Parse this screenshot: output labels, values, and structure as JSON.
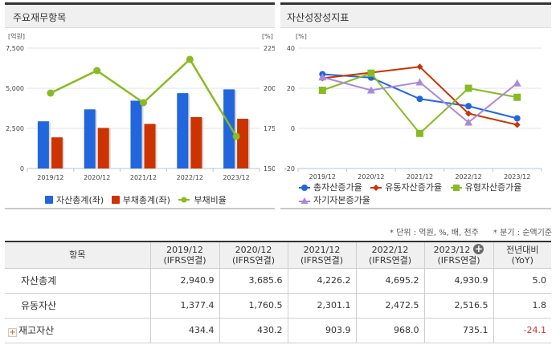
{
  "left_panel": {
    "title": "주요재무항목",
    "y_left_unit": "[억원]",
    "y_right_unit": "[%]",
    "y_left_ticks": [
      "7,500",
      "5,000",
      "2,500",
      "0"
    ],
    "y_right_ticks": [
      "225",
      "200",
      "175",
      "150"
    ],
    "legend": [
      {
        "label": "자산총계(좌)",
        "color": "#2266dd"
      },
      {
        "label": "부채총계(좌)",
        "color": "#cc3300"
      },
      {
        "label": "부채비율",
        "color": "#88bb22"
      }
    ]
  },
  "right_panel": {
    "title": "자산성장성지표",
    "y_unit": "[%]",
    "y_ticks": [
      "40",
      "20",
      "0",
      "-20"
    ],
    "legend": [
      {
        "label": "총자산증가율",
        "color": "#2266dd",
        "marker": "circle"
      },
      {
        "label": "유동자산증가율",
        "color": "#cc3300",
        "marker": "diamond"
      },
      {
        "label": "유형자산증가율",
        "color": "#88bb22",
        "marker": "square"
      },
      {
        "label": "자기자본증가율",
        "color": "#aa88dd",
        "marker": "triangle"
      }
    ]
  },
  "chart_data": [
    {
      "type": "bar",
      "title": "주요재무항목",
      "categories": [
        "2019/12",
        "2020/12",
        "2021/12",
        "2022/12",
        "2023/12"
      ],
      "ylabel": "억원",
      "ylim": [
        0,
        7500
      ],
      "y2label": "%",
      "y2lim": [
        150,
        225
      ],
      "series": [
        {
          "name": "자산총계(좌)",
          "type": "bar",
          "axis": "left",
          "color": "#2266dd",
          "values": [
            2940.9,
            3685.6,
            4226.2,
            4695.2,
            4930.9
          ]
        },
        {
          "name": "부채총계(좌)",
          "type": "bar",
          "axis": "left",
          "color": "#cc3300",
          "values": [
            1940,
            2530,
            2780,
            3200,
            3100
          ]
        },
        {
          "name": "부채비율",
          "type": "line",
          "axis": "right",
          "color": "#88bb22",
          "values": [
            197,
            211,
            191,
            218,
            170
          ]
        }
      ],
      "grid": true,
      "legend_position": "bottom"
    },
    {
      "type": "line",
      "title": "자산성장성지표",
      "categories": [
        "2019/12",
        "2020/12",
        "2021/12",
        "2022/12",
        "2023/12"
      ],
      "ylabel": "%",
      "ylim": [
        -20,
        40
      ],
      "series": [
        {
          "name": "총자산증가율",
          "color": "#2266dd",
          "marker": "circle",
          "values": [
            27.0,
            25.3,
            14.7,
            11.1,
            5.0
          ]
        },
        {
          "name": "유동자산증가율",
          "color": "#cc3300",
          "marker": "diamond",
          "values": [
            25.0,
            27.8,
            30.7,
            7.4,
            1.8
          ]
        },
        {
          "name": "유형자산증가율",
          "color": "#88bb22",
          "marker": "square",
          "values": [
            19.0,
            27.5,
            -2.5,
            20.0,
            15.5
          ]
        },
        {
          "name": "자기자본증가율",
          "color": "#aa88dd",
          "marker": "triangle",
          "values": [
            25.5,
            19.0,
            23.0,
            3.0,
            22.5
          ]
        }
      ],
      "grid": true,
      "legend_position": "bottom"
    }
  ],
  "notes": {
    "unit": "* 단위 : 억원, %, 배, 천주",
    "quarter": "* 분기 : 순액기준"
  },
  "table": {
    "headers": [
      {
        "line1": "항목",
        "line2": ""
      },
      {
        "line1": "2019/12",
        "line2": "(IFRS연결)"
      },
      {
        "line1": "2020/12",
        "line2": "(IFRS연결)"
      },
      {
        "line1": "2021/12",
        "line2": "(IFRS연결)"
      },
      {
        "line1": "2022/12",
        "line2": "(IFRS연결)"
      },
      {
        "line1": "2023/12",
        "line2": "(IFRS연결)"
      },
      {
        "line1": "전년대비",
        "line2": "(YoY)"
      }
    ],
    "expand_header_icon": "+",
    "rows": [
      {
        "label": "자산총계",
        "values": [
          "2,940.9",
          "3,685.6",
          "4,226.2",
          "4,695.2",
          "4,930.9",
          "5.0"
        ],
        "expandable": false
      },
      {
        "label": "유동자산",
        "values": [
          "1,377.4",
          "1,760.5",
          "2,301.1",
          "2,472.5",
          "2,516.5",
          "1.8"
        ],
        "expandable": false
      },
      {
        "label": "재고자산",
        "values": [
          "434.4",
          "430.2",
          "903.9",
          "968.0",
          "735.1",
          "-24.1"
        ],
        "expandable": true,
        "expand_icon": "+"
      }
    ]
  }
}
